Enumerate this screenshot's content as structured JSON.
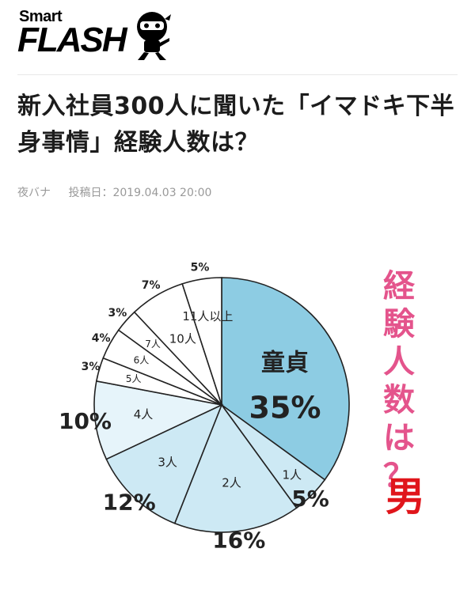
{
  "brand": {
    "small": "Smart",
    "big": "FLASH",
    "mascot_icon": "ninja-mascot-icon"
  },
  "article": {
    "title": "新入社員300人に聞いた「イマドキ下半身事情」経験人数は？",
    "author": "夜バナ",
    "posted_label": "投稿日：",
    "posted_at": "2019.04.03 20:00"
  },
  "chart_side": {
    "title_chars": [
      "経",
      "験",
      "人",
      "数",
      "は",
      "？"
    ],
    "gender": "男"
  },
  "colors": {
    "accent_pink": "#e4548c",
    "male_red": "#e0151b",
    "virgin_fill": "#8dcce3",
    "light_fill": "#cde9f4",
    "pale_fill": "#e6f4fa",
    "white_fill": "#ffffff"
  },
  "chart_data": {
    "type": "pie",
    "title": "経験人数は？",
    "subtitle": "男",
    "slices": [
      {
        "label": "童貞",
        "value": 35,
        "display": "35%"
      },
      {
        "label": "1人",
        "value": 5,
        "display": "5%"
      },
      {
        "label": "2人",
        "value": 16,
        "display": "16%"
      },
      {
        "label": "3人",
        "value": 12,
        "display": "12%"
      },
      {
        "label": "4人",
        "value": 10,
        "display": "10%"
      },
      {
        "label": "5人",
        "value": 3,
        "display": "3%"
      },
      {
        "label": "6人",
        "value": 4,
        "display": "4%"
      },
      {
        "label": "7人",
        "value": 3,
        "display": "3%"
      },
      {
        "label": "10人",
        "value": 7,
        "display": "7%"
      },
      {
        "label": "11人以上",
        "value": 5,
        "display": "5%"
      }
    ]
  }
}
